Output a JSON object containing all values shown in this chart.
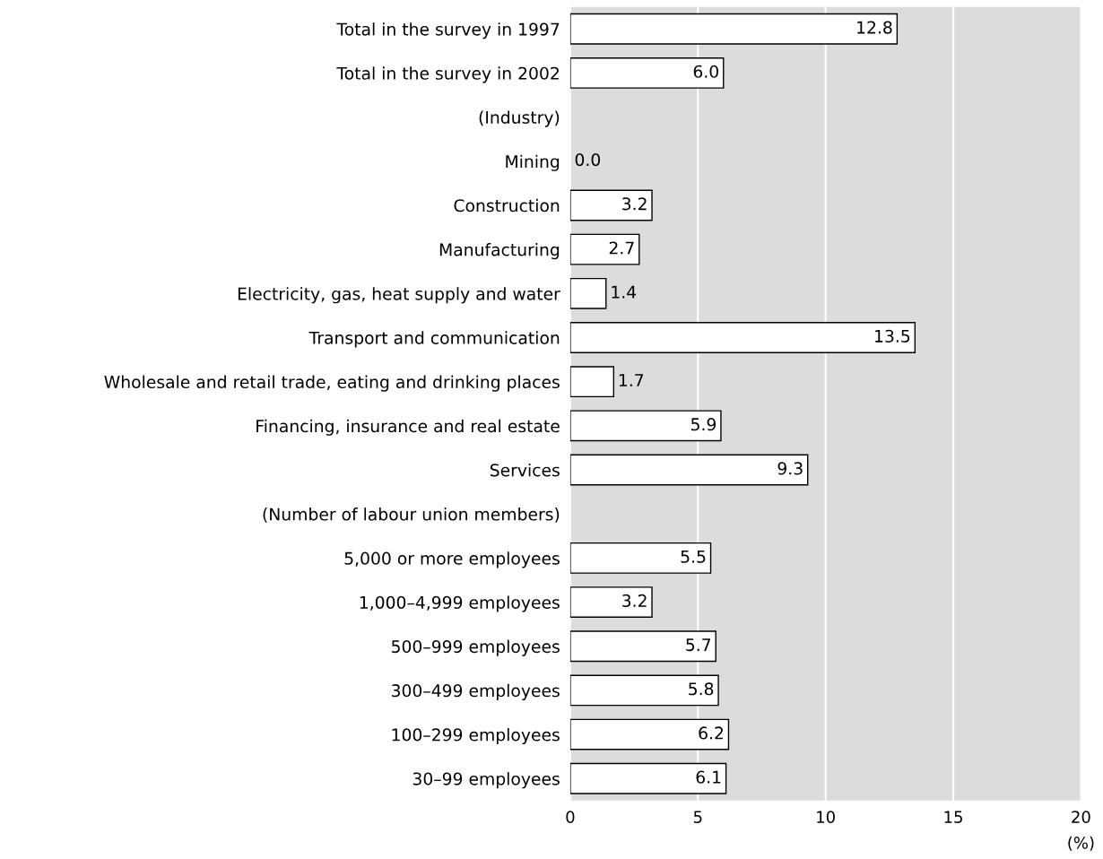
{
  "chart_data": {
    "type": "bar",
    "orientation": "horizontal",
    "categories": [
      "Total in the survey in 1997",
      "Total in the survey in 2002",
      "(Industry)",
      "Mining",
      "Construction",
      "Manufacturing",
      "Electricity, gas, heat supply and water",
      "Transport and communication",
      "Wholesale and retail trade, eating and drinking places",
      "Financing, insurance and real estate",
      "Services",
      "(Number of labour union members)",
      "5,000 or more employees",
      "1,000–4,999 employees",
      "500–999 employees",
      "300–499 employees",
      "100–299 employees",
      "30–99 employees"
    ],
    "values": [
      12.8,
      6.0,
      null,
      0.0,
      3.2,
      2.7,
      1.4,
      13.5,
      1.7,
      5.9,
      9.3,
      null,
      5.5,
      3.2,
      5.7,
      5.8,
      6.2,
      6.1
    ],
    "value_labels": [
      "12.8",
      "6.0",
      null,
      "0.0",
      "3.2",
      "2.7",
      "1.4",
      "13.5",
      "1.7",
      "5.9",
      "9.3",
      null,
      "5.5",
      "3.2",
      "5.7",
      "5.8",
      "6.2",
      "6.1"
    ],
    "color": "#ffffff",
    "xlim": [
      0,
      20
    ],
    "xticks": [
      0,
      5,
      10,
      15,
      20
    ],
    "xlabel": "(%)",
    "grid": "x",
    "legend": false
  }
}
